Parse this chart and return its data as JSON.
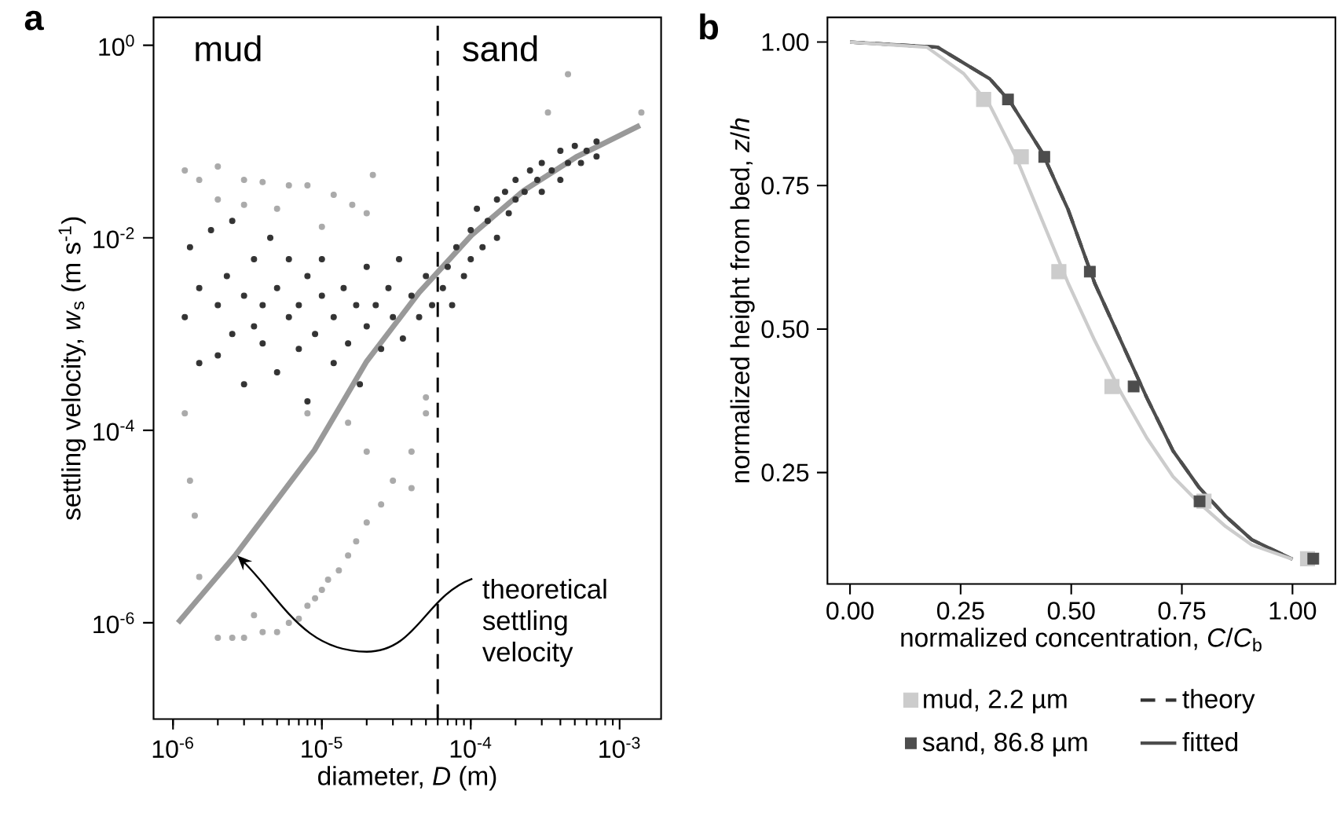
{
  "chart_data": [
    {
      "type": "scatter",
      "title": "a",
      "xlabel": "diameter, *D* (m)",
      "ylabel": "settling velocity, *w*$_{s}$ (m s$^{-1}$)",
      "log": "xy",
      "xlim": [
        7.4e-07,
        0.0019
      ],
      "ylim": [
        1e-07,
        1.95
      ],
      "xticks": [
        {
          "value": 1e-06,
          "label": "10$^{-6}$"
        },
        {
          "value": 1e-05,
          "label": "10$^{-5}$"
        },
        {
          "value": 0.0001,
          "label": "10$^{-4}$"
        },
        {
          "value": 0.001,
          "label": "10$^{-3}$"
        }
      ],
      "yticks": [
        {
          "value": 1e-06,
          "label": "10$^{-6}$"
        },
        {
          "value": 0.0001,
          "label": "10$^{-4}$"
        },
        {
          "value": 0.01,
          "label": "10$^{-2}$"
        },
        {
          "value": 1,
          "label": "10$^{0}$"
        }
      ],
      "ref_lines": [
        {
          "axis": "x",
          "value": 6e-05,
          "line_style": "dashed",
          "color": "#000000"
        }
      ],
      "annotations": [
        "mud",
        "sand",
        {
          "text": "theoretical settling velocity",
          "x": 2.7e-06,
          "y": 5e-06
        }
      ],
      "series": [
        {
          "marker": "circle",
          "color": "#333333",
          "x": [
            1.2e-06,
            1.3e-06,
            1.5e-06,
            1.5e-06,
            1.8e-06,
            2e-06,
            2e-06,
            2.3e-06,
            2.5e-06,
            2.5e-06,
            3e-06,
            3e-06,
            3.5e-06,
            3.5e-06,
            4e-06,
            4e-06,
            4.5e-06,
            5e-06,
            5e-06,
            6e-06,
            6e-06,
            7e-06,
            7e-06,
            8e-06,
            8e-06,
            9e-06,
            1e-05,
            1e-05,
            1.2e-05,
            1.2e-05,
            1.4e-05,
            1.5e-05,
            1.7e-05,
            1.8e-05,
            2e-05,
            2e-05,
            2.3e-05,
            2.5e-05,
            2.8e-05,
            3e-05,
            3.3e-05,
            3.5e-05,
            4e-05,
            4.5e-05,
            5e-05,
            5.5e-05,
            6.5e-05,
            7e-05,
            7.5e-05,
            8e-05,
            9e-05,
            0.0001,
            0.0001,
            0.00011,
            0.00012,
            0.00013,
            0.00015,
            0.00015,
            0.00017,
            0.00018,
            0.0002,
            0.0002,
            0.00023,
            0.00025,
            0.00028,
            0.0003,
            0.0003,
            0.00035,
            0.0004,
            0.0004,
            0.00045,
            0.0005,
            0.00055,
            0.0006,
            0.0007,
            0.0007
          ],
          "values": [
            0.0015,
            0.008,
            0.003,
            0.0005,
            0.012,
            0.002,
            0.0006,
            0.004,
            0.001,
            0.015,
            0.0025,
            0.0003,
            0.006,
            0.0012,
            0.002,
            0.0008,
            0.01,
            0.003,
            0.0004,
            0.0015,
            0.006,
            0.002,
            0.0007,
            0.004,
            0.0002,
            0.001,
            0.0025,
            0.006,
            0.0015,
            0.0005,
            0.003,
            0.0008,
            0.002,
            0.0003,
            0.0012,
            0.005,
            0.002,
            0.0007,
            0.003,
            0.0015,
            0.006,
            0.0009,
            0.0025,
            0.0015,
            0.004,
            0.002,
            0.003,
            0.005,
            0.002,
            0.008,
            0.004,
            0.012,
            0.006,
            0.02,
            0.008,
            0.015,
            0.025,
            0.01,
            0.03,
            0.018,
            0.04,
            0.025,
            0.03,
            0.05,
            0.04,
            0.06,
            0.03,
            0.05,
            0.08,
            0.04,
            0.06,
            0.09,
            0.06,
            0.08,
            0.07,
            0.1
          ]
        },
        {
          "marker": "circle",
          "color": "#aaaaaa",
          "x": [
            1.2e-06,
            1.5e-06,
            2e-06,
            3e-06,
            4e-06,
            6e-06,
            8e-06,
            1.2e-05,
            1.6e-05,
            2e-05,
            2e-06,
            3e-06,
            5e-06,
            1e-05,
            2.2e-05,
            1.2e-06,
            1.3e-06,
            1.4e-06,
            1.5e-06,
            2e-06,
            2.5e-06,
            3e-06,
            3.5e-06,
            4e-06,
            5e-06,
            6e-06,
            7e-06,
            8e-06,
            9e-06,
            1e-05,
            1.1e-05,
            1.3e-05,
            1.5e-05,
            1.7e-05,
            2e-05,
            2.5e-05,
            3e-05,
            4e-05,
            4e-05,
            5e-05,
            5e-05,
            0.00045,
            0.0014,
            0.00033,
            8e-06,
            1.5e-05,
            2e-05
          ],
          "values": [
            0.05,
            0.04,
            0.055,
            0.04,
            0.038,
            0.035,
            0.035,
            0.028,
            0.022,
            0.018,
            0.025,
            0.022,
            0.02,
            0.013,
            0.045,
            0.00015,
            3e-05,
            1.3e-05,
            3e-06,
            7e-07,
            7e-07,
            7e-07,
            1.2e-06,
            8e-07,
            8e-07,
            1e-06,
            1.1e-06,
            1.5e-06,
            1.8e-06,
            2.2e-06,
            2.8e-06,
            3.5e-06,
            5e-06,
            7e-06,
            1.1e-05,
            1.7e-05,
            3e-05,
            2.5e-05,
            6e-05,
            0.00015,
            0.00022,
            0.5,
            0.2,
            0.2,
            0.00015,
            0.00012,
            6e-05
          ]
        },
        {
          "type": "line",
          "color": "#999999",
          "x": [
            1.08e-06,
            2.64e-06,
            8.9e-06,
            2e-05,
            4.5e-05,
            0.000101,
            0.000227,
            0.00051,
            0.00137
          ],
          "values": [
            1e-06,
            5.1e-06,
            6.2e-05,
            0.00052,
            0.0027,
            0.0106,
            0.031,
            0.069,
            0.147
          ]
        }
      ]
    },
    {
      "type": "line",
      "title": "b",
      "xlabel": "normalized concentration, *C*/*C*$_{b}$",
      "ylabel": "normalized height from bed, *z*/*h*",
      "legend": "bottom",
      "xlim": [
        -0.051,
        1.097
      ],
      "ylim": [
        0.056,
        1.043
      ],
      "xticks": [
        {
          "value": 0,
          "label": "0.00"
        },
        0.25,
        {
          "value": 0.5,
          "label": "0.50"
        },
        0.75,
        {
          "value": 1,
          "label": "1.00"
        }
      ],
      "yticks": [
        0.25,
        {
          "value": 0.5,
          "label": "0.50"
        },
        0.75,
        {
          "value": 1,
          "label": "1.00"
        }
      ],
      "series": [
        {
          "type": "scatter",
          "marker": "square",
          "name": "mud, 2.2 µm",
          "color": "#cccccc",
          "x": [
            0.302,
            0.387,
            0.472,
            0.592,
            0.8,
            1.034
          ],
          "values": [
            0.9,
            0.8,
            0.6,
            0.4,
            0.2,
            0.1
          ]
        },
        {
          "name": "theory",
          "color": "#333333",
          "line_style": "dashed",
          "x": [
            0,
            0.198,
            0.316,
            0.363,
            0.434,
            0.493,
            0.553,
            0.612,
            0.671,
            0.73,
            0.789,
            0.849,
            0.908,
            1.0
          ],
          "values": [
            1.0,
            0.991,
            0.936,
            0.895,
            0.808,
            0.708,
            0.58,
            0.48,
            0.38,
            0.288,
            0.224,
            0.174,
            0.133,
            0.099
          ]
        },
        {
          "type": "scatter",
          "marker": "square",
          "name": "sand, 86.8 µm",
          "color": "#4d4d4d",
          "x": [
            0.357,
            0.439,
            0.542,
            0.641,
            0.79,
            1.047
          ],
          "values": [
            0.9,
            0.8,
            0.6,
            0.4,
            0.2,
            0.1
          ]
        },
        {
          "name": "fitted",
          "color": "#4d4d4d",
          "x": [
            0,
            0.198,
            0.316,
            0.363,
            0.434,
            0.493,
            0.553,
            0.612,
            0.671,
            0.73,
            0.789,
            0.849,
            0.908,
            1.0
          ],
          "values": [
            1.0,
            0.991,
            0.936,
            0.895,
            0.808,
            0.708,
            0.58,
            0.48,
            0.38,
            0.288,
            0.224,
            0.174,
            0.133,
            0.099
          ]
        },
        {
          "color": "#cccccc",
          "x": [
            0,
            0.174,
            0.257,
            0.316,
            0.375,
            0.434,
            0.493,
            0.553,
            0.612,
            0.671,
            0.73,
            0.789,
            0.849,
            0.908,
            1.0
          ],
          "values": [
            1.0,
            0.991,
            0.945,
            0.89,
            0.8,
            0.69,
            0.58,
            0.48,
            0.39,
            0.31,
            0.243,
            0.197,
            0.156,
            0.124,
            0.099
          ]
        }
      ]
    }
  ]
}
